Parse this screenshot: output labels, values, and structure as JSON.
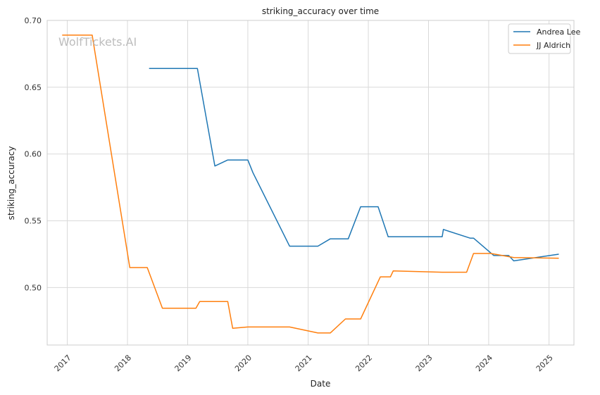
{
  "chart_data": {
    "type": "line",
    "title": "striking_accuracy over time",
    "xlabel": "Date",
    "ylabel": "striking_accuracy",
    "watermark": "WolfTickets.AI",
    "x_range": [
      "2016-09-01",
      "2025-06-01"
    ],
    "ylim": [
      0.457,
      0.7
    ],
    "x_ticks": [
      "2017",
      "2018",
      "2019",
      "2020",
      "2021",
      "2022",
      "2023",
      "2024",
      "2025"
    ],
    "y_ticks": [
      "0.50",
      "0.55",
      "0.60",
      "0.65",
      "0.70"
    ],
    "grid": true,
    "legend_position": "top-right",
    "series": [
      {
        "name": "Andrea Lee",
        "color": "#1f77b4",
        "x": [
          "2018-05-12",
          "2019-03-01",
          "2019-06-15",
          "2019-09-01",
          "2020-01-01",
          "2020-02-01",
          "2020-09-10",
          "2021-03-01",
          "2021-05-15",
          "2021-09-01",
          "2021-11-15",
          "2022-03-01",
          "2022-05-01",
          "2023-03-25",
          "2023-04-01",
          "2023-09-10",
          "2023-10-01",
          "2024-02-01",
          "2024-05-01",
          "2024-06-01",
          "2025-03-01"
        ],
        "values": [
          0.664,
          0.664,
          0.591,
          0.5955,
          0.5955,
          0.586,
          0.531,
          0.531,
          0.5365,
          0.5365,
          0.5605,
          0.5605,
          0.538,
          0.538,
          0.5435,
          0.537,
          0.537,
          0.524,
          0.524,
          0.52,
          0.525
        ]
      },
      {
        "name": "JJ Aldrich",
        "color": "#ff7f0e",
        "x": [
          "2016-12-01",
          "2017-06-01",
          "2018-01-15",
          "2018-05-01",
          "2018-08-01",
          "2019-02-20",
          "2019-03-15",
          "2019-09-01",
          "2019-10-01",
          "2020-01-01",
          "2020-09-10",
          "2021-03-01",
          "2021-05-15",
          "2021-08-15",
          "2021-11-15",
          "2022-03-15",
          "2022-05-15",
          "2022-06-01",
          "2023-03-25",
          "2023-08-20",
          "2023-10-01",
          "2024-01-15",
          "2024-06-01",
          "2025-03-01"
        ],
        "values": [
          0.689,
          0.689,
          0.515,
          0.515,
          0.4845,
          0.4845,
          0.4895,
          0.4895,
          0.4695,
          0.4705,
          0.4705,
          0.466,
          0.466,
          0.4765,
          0.4765,
          0.508,
          0.508,
          0.5125,
          0.5115,
          0.5115,
          0.5255,
          0.5255,
          0.5225,
          0.522
        ]
      }
    ]
  }
}
